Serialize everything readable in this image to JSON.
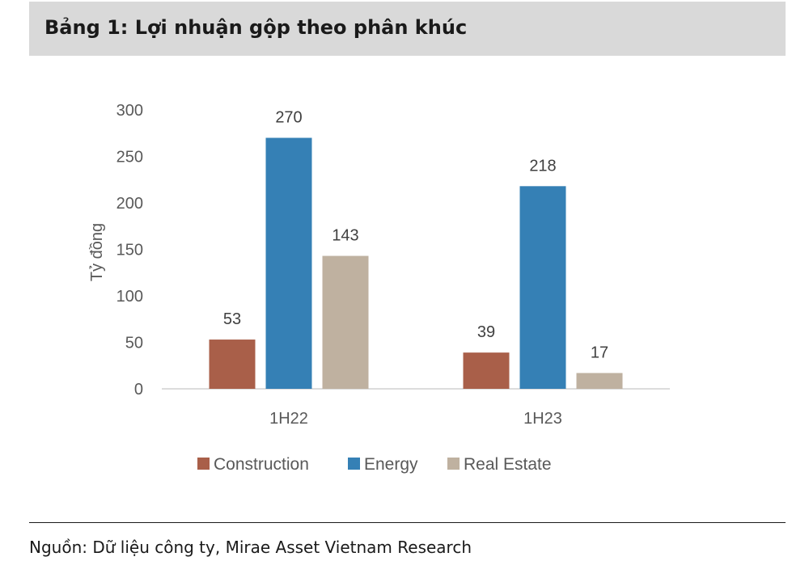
{
  "header": {
    "title": "Bảng 1: Lợi nhuận gộp theo phân khúc"
  },
  "chart_data": {
    "type": "bar",
    "title": "",
    "xlabel": "",
    "ylabel": "Tỷ đồng",
    "ylim": [
      0,
      300
    ],
    "yticks": [
      0,
      50,
      100,
      150,
      200,
      250,
      300
    ],
    "categories": [
      "1H22",
      "1H23"
    ],
    "series": [
      {
        "name": "Construction",
        "color": "#a95f49",
        "values": [
          53,
          39
        ]
      },
      {
        "name": "Energy",
        "color": "#3580b5",
        "values": [
          270,
          218
        ]
      },
      {
        "name": "Real Estate",
        "color": "#bfb1a0",
        "values": [
          143,
          17
        ]
      }
    ],
    "data_labels": true,
    "grid": false,
    "legend": "bottom"
  },
  "footer": {
    "source": "Nguồn: Dữ liệu công ty, Mirae Asset Vietnam Research"
  }
}
